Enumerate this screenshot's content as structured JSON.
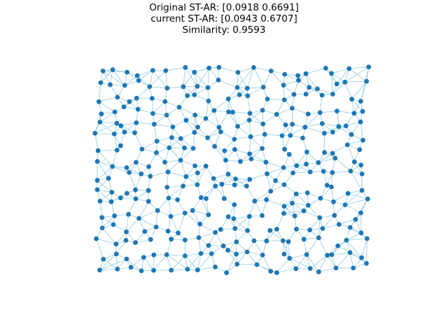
{
  "figure": {
    "title_lines": [
      "Original ST-AR: [0.0918 0.6691]",
      "current ST-AR: [0.0943 0.6707]",
      "Similarity: 0.9593"
    ],
    "edge_color": "#add8e6",
    "node_color": "#1f77b4"
  }
}
